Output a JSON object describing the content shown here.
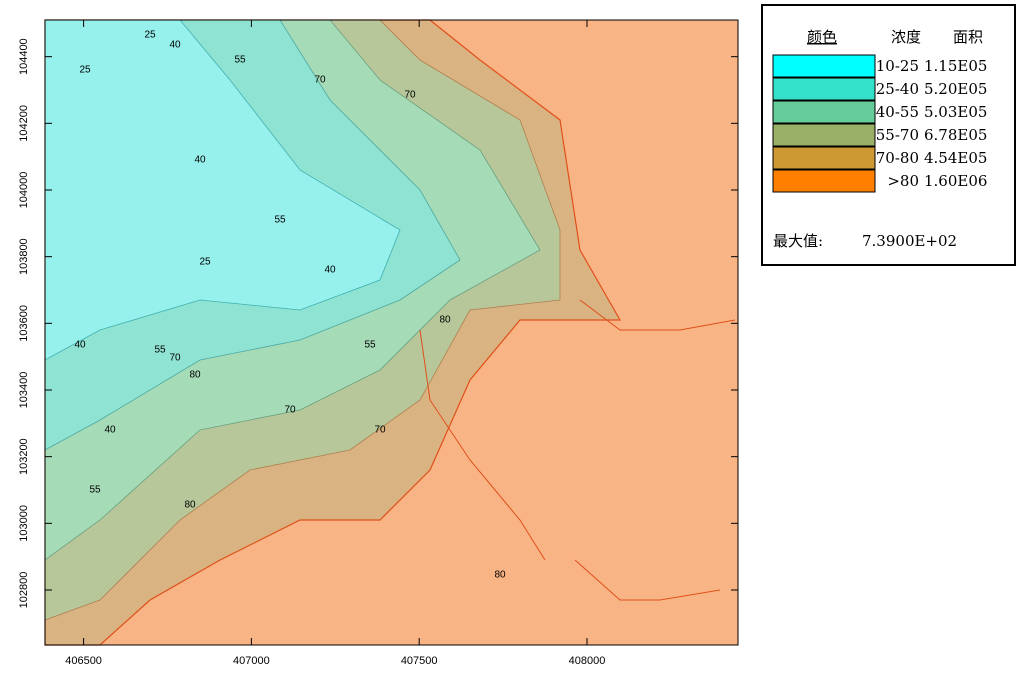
{
  "map": {
    "xlim": [
      406385,
      408450
    ],
    "ylim": [
      102635,
      104510
    ],
    "xticks": [
      406500,
      407000,
      407500,
      408000
    ],
    "yticks": [
      102800,
      103000,
      103200,
      103400,
      103600,
      103800,
      104000,
      104200,
      104400
    ],
    "contour_labels": [
      "25",
      "25",
      "40",
      "55",
      "40",
      "70",
      "55",
      "70",
      "40",
      "25",
      "40",
      "55",
      "70",
      "80",
      "55",
      "80",
      "70",
      "40",
      "55",
      "80",
      "80",
      "70"
    ]
  },
  "legend": {
    "headers": [
      "颜色",
      "浓度",
      "面积"
    ],
    "rows": [
      {
        "color": "#00ffff",
        "range": "10-25",
        "area": "1.15E05"
      },
      {
        "color": "#33e0c8",
        "range": "25-40",
        "area": "5.20E05"
      },
      {
        "color": "#66cc99",
        "range": "40-55",
        "area": "5.03E05"
      },
      {
        "color": "#99b066",
        "range": "55-70",
        "area": "6.78E05"
      },
      {
        "color": "#cc9933",
        "range": "70-80",
        "area": "4.54E05"
      },
      {
        "color": "#ff7f00",
        "range": ">80",
        "area": "1.60E06"
      }
    ],
    "max_label": "最大值:",
    "max_value": "7.3900E+02"
  }
}
